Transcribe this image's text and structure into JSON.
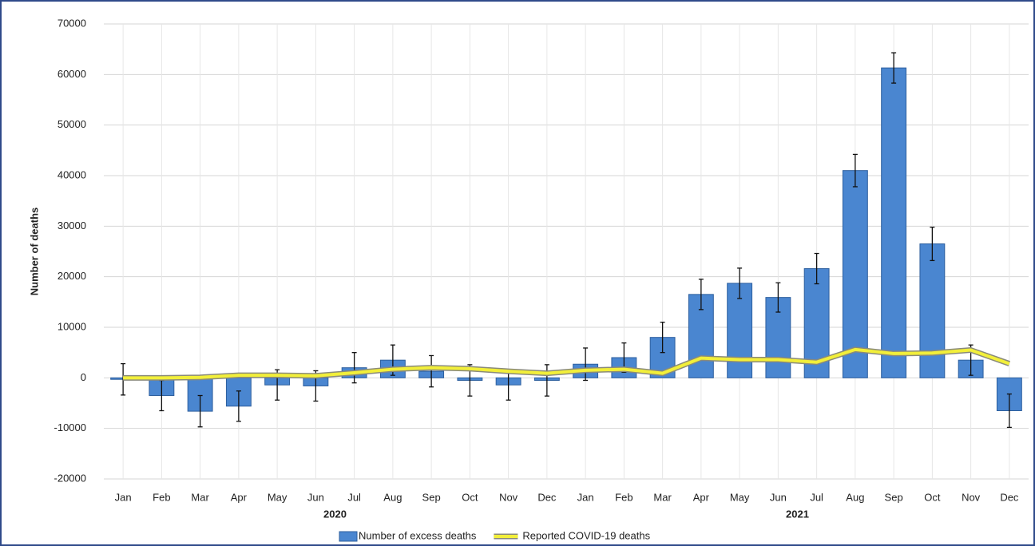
{
  "chart_data": {
    "type": "bar",
    "y_label": "Number of deaths",
    "categories": [
      "Jan",
      "Feb",
      "Mar",
      "Apr",
      "May",
      "Jun",
      "Jul",
      "Aug",
      "Sep",
      "Oct",
      "Nov",
      "Dec",
      "Jan",
      "Feb",
      "Mar",
      "Apr",
      "May",
      "Jun",
      "Jul",
      "Aug",
      "Sep",
      "Oct",
      "Nov",
      "Dec"
    ],
    "year_labels": [
      "2020",
      "2021"
    ],
    "series": [
      {
        "name": "Number of excess deaths",
        "type": "bar",
        "color": "#4a86d0",
        "values": [
          -300,
          -3500,
          -6600,
          -5600,
          -1400,
          -1600,
          2000,
          3500,
          1300,
          -500,
          -1400,
          -500,
          2700,
          4000,
          8000,
          16500,
          18700,
          15900,
          21600,
          41000,
          61300,
          26500,
          3500,
          -6500
        ],
        "errors": [
          3100,
          3000,
          3100,
          3000,
          3000,
          3000,
          3000,
          3000,
          3100,
          3100,
          3000,
          3100,
          3200,
          2900,
          3000,
          3000,
          3000,
          2900,
          3000,
          3200,
          3000,
          3300,
          3000,
          3300
        ]
      },
      {
        "name": "Reported COVID-19 deaths",
        "type": "line",
        "color": "#f2ef3a",
        "values": [
          0,
          0,
          100,
          500,
          500,
          400,
          1000,
          1700,
          2000,
          1800,
          1300,
          900,
          1500,
          1700,
          900,
          3900,
          3600,
          3600,
          3100,
          5600,
          4800,
          4900,
          5500,
          2800
        ]
      }
    ],
    "ylim": [
      -20000,
      70000
    ],
    "yticks": [
      -20000,
      -10000,
      0,
      10000,
      20000,
      30000,
      40000,
      50000,
      60000,
      70000
    ],
    "grid": true,
    "legend": "bottom"
  }
}
